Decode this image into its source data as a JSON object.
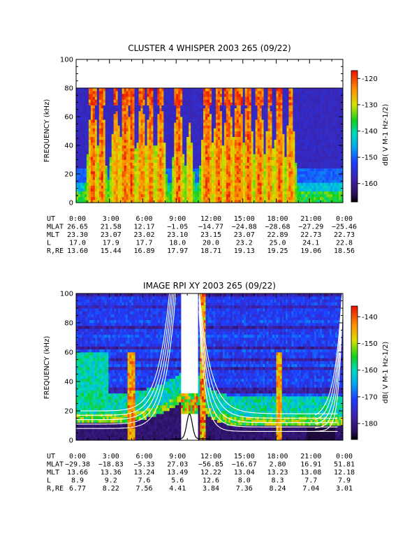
{
  "chart_data": [
    {
      "type": "heatmap",
      "title": "CLUSTER 4 WHISPER 2003 265 (09/22)",
      "ylabel": "FREQUENCY (kHz)",
      "ylim": [
        0,
        100
      ],
      "xlim": [
        0,
        24
      ],
      "y_ticks": [
        "0",
        "20",
        "40",
        "60",
        "80",
        "100"
      ],
      "data_max_freq": 80,
      "colorbar": {
        "label": "dB( V M⁻¹ Hz⁻¹ᐟ²)",
        "label_text": "dB( V M-1 Hz-1/2)",
        "ticks": [
          "-120",
          "-130",
          "-140",
          "-150",
          "-160"
        ],
        "range": [
          -167,
          -117
        ],
        "tick_values": [
          -120,
          -130,
          -140,
          -150,
          -160
        ]
      },
      "ephemeris_rows": [
        "UT",
        "MLAT",
        "MLT",
        "L",
        "R,RE"
      ],
      "ephemeris": [
        [
          "0:00",
          "3:00",
          "6:00",
          "9:00",
          "12:00",
          "15:00",
          "18:00",
          "21:00",
          "0:00"
        ],
        [
          "26.65",
          "21.58",
          "12.17",
          "−1.05",
          "−14.77",
          "−24.88",
          "−28.68",
          "−27.29",
          "−25.46"
        ],
        [
          "23.30",
          "23.07",
          "23.02",
          "23.10",
          "23.15",
          "23.07",
          "22.89",
          "22.73",
          "22.73"
        ],
        [
          "17.0",
          "17.9",
          "17.7",
          "18.0",
          "20.0",
          "23.2",
          "25.0",
          "24.1",
          "22.8"
        ],
        [
          "13.60",
          "15.44",
          "16.89",
          "17.97",
          "18.71",
          "19.13",
          "19.25",
          "19.06",
          "18.56"
        ]
      ],
      "bursts": [
        [
          1.5,
          0.5,
          1.0
        ],
        [
          2.3,
          0.4,
          1.0
        ],
        [
          3.6,
          0.6,
          0.8
        ],
        [
          4.4,
          0.5,
          1.0
        ],
        [
          5.0,
          0.4,
          1.0
        ],
        [
          5.9,
          0.5,
          0.9
        ],
        [
          6.7,
          0.4,
          1.0
        ],
        [
          7.6,
          0.5,
          0.9
        ],
        [
          9.2,
          0.5,
          1.0
        ],
        [
          10.2,
          0.4,
          0.7
        ],
        [
          11.8,
          0.6,
          1.0
        ],
        [
          12.8,
          0.5,
          1.0
        ],
        [
          13.7,
          0.5,
          1.0
        ],
        [
          14.6,
          0.6,
          1.0
        ],
        [
          15.5,
          0.5,
          1.0
        ],
        [
          16.5,
          0.5,
          1.0
        ],
        [
          17.4,
          0.4,
          0.9
        ],
        [
          18.3,
          0.5,
          1.0
        ],
        [
          19.3,
          0.5,
          0.9
        ]
      ]
    },
    {
      "type": "heatmap",
      "title": "IMAGE RPI XY 2003 265 (09/22)",
      "ylabel": "FREQUENCY (kHz)",
      "ylim": [
        0,
        100
      ],
      "xlim": [
        0,
        24
      ],
      "y_ticks": [
        "0",
        "20",
        "40",
        "60",
        "80",
        "100"
      ],
      "data_gap_ut": [
        9.4,
        11.0
      ],
      "gap_band_kHz": [
        18,
        33
      ],
      "colorbar": {
        "label": "dB( V M⁻¹ Hz⁻¹ᐟ²)",
        "label_text": "dB( V M-1 Hz-1/2)",
        "ticks": [
          "-140",
          "-150",
          "-160",
          "-170",
          "-180"
        ],
        "range": [
          -186,
          -136
        ],
        "tick_values": [
          -140,
          -150,
          -160,
          -170,
          -180
        ]
      },
      "ephemeris_rows": [
        "UT",
        "MLAT",
        "MLT",
        "L",
        "R,RE"
      ],
      "ephemeris": [
        [
          "0:00",
          "3:00",
          "6:00",
          "9:00",
          "12:00",
          "15:00",
          "18:00",
          "21:00",
          "0:00"
        ],
        [
          "−29.38",
          "−18.83",
          "−5.33",
          "27.03",
          "−56.85",
          "−16.67",
          "2.80",
          "16.91",
          "51.81"
        ],
        [
          "13.66",
          "13.36",
          "13.24",
          "13.49",
          "12.22",
          "13.04",
          "13.23",
          "13.08",
          "12.18"
        ],
        [
          "8.9",
          "9.2",
          "7.6",
          "5.6",
          "12.6",
          "8.0",
          "8.3",
          "7.7",
          "7.9"
        ],
        [
          "6.77",
          "8.22",
          "7.56",
          "4.41",
          "3.84",
          "7.36",
          "8.24",
          "7.04",
          "3.01"
        ]
      ]
    }
  ]
}
